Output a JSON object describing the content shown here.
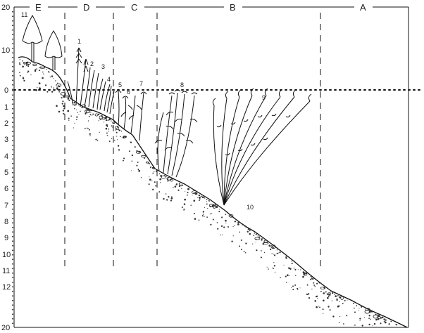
{
  "zones": [
    "E",
    "D",
    "C",
    "B",
    "A"
  ],
  "depth_scale": {
    "top_labels": [
      "20",
      "10"
    ],
    "depth_labels": [
      "0",
      "1",
      "2",
      "3",
      "4",
      "5",
      "6",
      "7",
      "8",
      "9",
      "10",
      "11",
      "12",
      "20"
    ]
  },
  "plant_labels": [
    "1",
    "2",
    "3",
    "4",
    "5",
    "6",
    "7",
    "8",
    "9",
    "10",
    "11"
  ]
}
